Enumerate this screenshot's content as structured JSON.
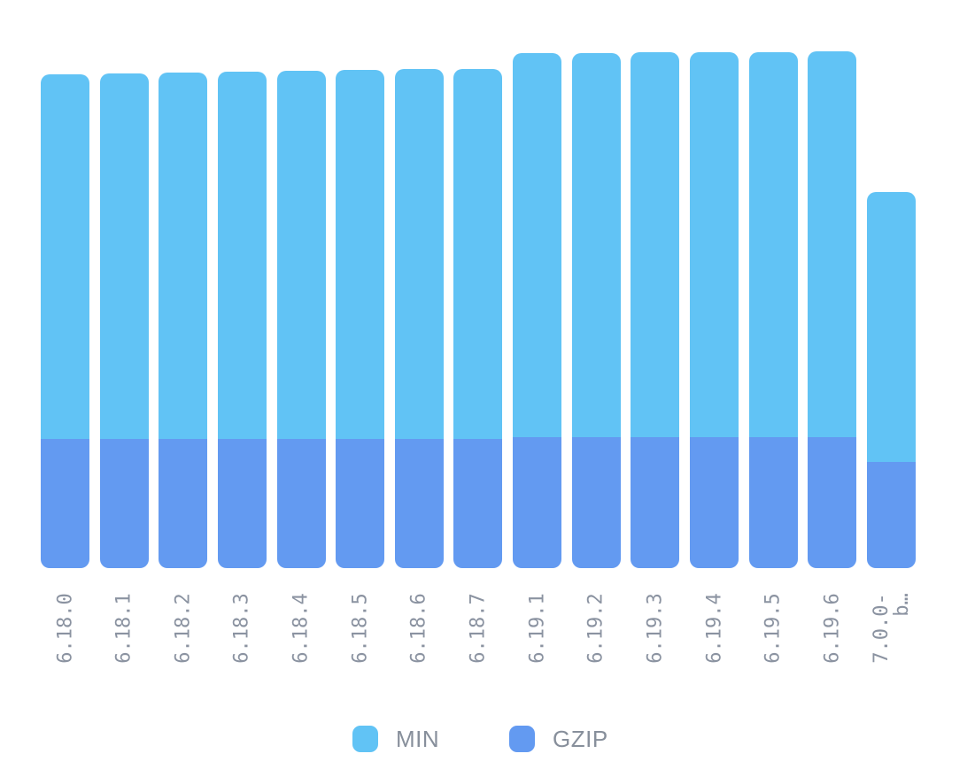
{
  "chart_data": {
    "type": "bar",
    "stacked": true,
    "title": "",
    "xlabel": "",
    "ylabel": "",
    "axis_visible": false,
    "grid": false,
    "legend_position": "bottom-center",
    "value_units": "pixel-proportional (no numeric axis shown in chart)",
    "ylim": [
      0,
      642
    ],
    "categories": [
      "6.18.0",
      "6.18.1",
      "6.18.2",
      "6.18.3",
      "6.18.4",
      "6.18.5",
      "6.18.6",
      "6.18.7",
      "6.19.1",
      "6.19.2",
      "6.19.3",
      "6.19.4",
      "6.19.5",
      "6.19.6",
      "7.0.0-b…"
    ],
    "tick_labels": [
      "6.18.0",
      "6.18.1",
      "6.18.2",
      "6.18.3",
      "6.18.4",
      "6.18.5",
      "6.18.6",
      "6.18.7",
      "6.19.1",
      "6.19.2",
      "6.19.3",
      "6.19.4",
      "6.19.5",
      "6.19.6",
      "7.0.0-\nb…"
    ],
    "series": [
      {
        "name": "MIN",
        "color": "#61c3f5",
        "values": [
          412,
          413,
          414,
          415,
          416,
          417,
          418,
          418,
          434,
          434,
          435,
          435,
          435,
          436,
          305
        ]
      },
      {
        "name": "GZIP",
        "color": "#639af1",
        "values": [
          146,
          146,
          146,
          146,
          146,
          146,
          146,
          146,
          148,
          148,
          148,
          148,
          148,
          148,
          120
        ]
      }
    ]
  },
  "legend": {
    "items": [
      {
        "label": "MIN"
      },
      {
        "label": "GZIP"
      }
    ]
  }
}
